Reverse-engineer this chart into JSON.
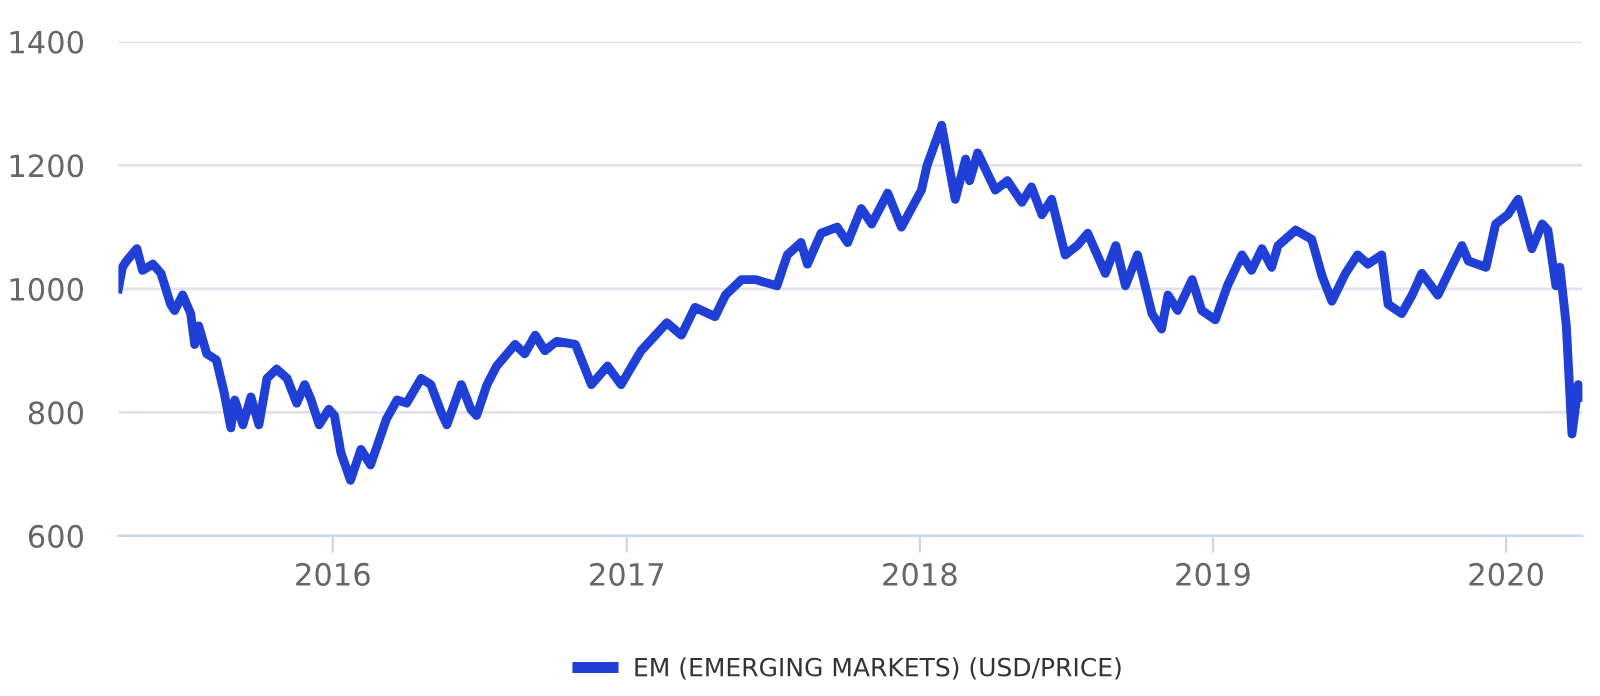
{
  "chart_data": {
    "type": "line",
    "x": [
      "2015-04-09",
      "2015-04-14",
      "2015-04-19",
      "2015-05-02",
      "2015-05-09",
      "2015-05-22",
      "2015-06-01",
      "2015-06-13",
      "2015-06-18",
      "2015-06-28",
      "2015-07-08",
      "2015-07-13",
      "2015-07-18",
      "2015-07-28",
      "2015-08-09",
      "2015-08-19",
      "2015-08-27",
      "2015-09-01",
      "2015-09-11",
      "2015-09-21",
      "2015-10-01",
      "2015-10-11",
      "2015-10-23",
      "2015-11-05",
      "2015-11-17",
      "2015-11-27",
      "2015-12-05",
      "2015-12-15",
      "2015-12-27",
      "2016-01-03",
      "2016-01-11",
      "2016-01-23",
      "2016-02-05",
      "2016-02-17",
      "2016-02-25",
      "2016-03-08",
      "2016-03-21",
      "2016-04-02",
      "2016-04-20",
      "2016-05-02",
      "2016-05-15",
      "2016-05-22",
      "2016-06-09",
      "2016-06-21",
      "2016-06-28",
      "2016-07-11",
      "2016-07-23",
      "2016-08-15",
      "2016-08-27",
      "2016-09-09",
      "2016-09-21",
      "2016-10-06",
      "2016-10-29",
      "2016-11-18",
      "2016-12-08",
      "2016-12-25",
      "2017-01-19",
      "2017-02-20",
      "2017-03-10",
      "2017-03-27",
      "2017-04-21",
      "2017-05-04",
      "2017-05-24",
      "2017-06-10",
      "2017-07-07",
      "2017-07-20",
      "2017-08-06",
      "2017-08-14",
      "2017-08-31",
      "2017-09-20",
      "2017-10-03",
      "2017-10-20",
      "2017-11-02",
      "2017-11-22",
      "2017-12-09",
      "2018-01-03",
      "2018-01-10",
      "2018-01-28",
      "2018-02-14",
      "2018-02-27",
      "2018-03-04",
      "2018-03-14",
      "2018-04-05",
      "2018-04-20",
      "2018-05-08",
      "2018-05-20",
      "2018-06-02",
      "2018-06-14",
      "2018-07-01",
      "2018-07-16",
      "2018-07-29",
      "2018-08-20",
      "2018-09-02",
      "2018-09-14",
      "2018-09-29",
      "2018-10-17",
      "2018-10-29",
      "2018-11-06",
      "2018-11-18",
      "2018-12-06",
      "2018-12-18",
      "2019-01-04",
      "2019-01-19",
      "2019-02-06",
      "2019-02-18",
      "2019-03-03",
      "2019-03-15",
      "2019-03-23",
      "2019-04-14",
      "2019-05-04",
      "2019-05-17",
      "2019-05-29",
      "2019-06-15",
      "2019-06-30",
      "2019-07-13",
      "2019-07-30",
      "2019-08-07",
      "2019-08-24",
      "2019-09-06",
      "2019-09-18",
      "2019-10-08",
      "2019-10-21",
      "2019-11-07",
      "2019-11-15",
      "2019-12-07",
      "2019-12-19",
      "2020-01-03",
      "2020-01-16",
      "2020-02-02",
      "2020-02-15",
      "2020-02-22",
      "2020-03-03",
      "2020-03-08",
      "2020-03-16",
      "2020-03-23",
      "2020-03-31",
      "2020-04-05"
    ],
    "series": [
      {
        "name": "EM (EMERGING MARKETS) (USD/PRICE)",
        "color": "#1f3fd6",
        "values": [
          1000,
          1035,
          1045,
          1065,
          1030,
          1040,
          1025,
          975,
          965,
          990,
          960,
          910,
          940,
          895,
          885,
          830,
          775,
          820,
          780,
          825,
          780,
          855,
          870,
          855,
          815,
          845,
          820,
          780,
          805,
          795,
          735,
          690,
          740,
          715,
          745,
          790,
          820,
          815,
          855,
          845,
          800,
          780,
          845,
          805,
          795,
          845,
          875,
          910,
          895,
          925,
          900,
          915,
          910,
          845,
          875,
          845,
          900,
          945,
          925,
          970,
          955,
          990,
          1015,
          1015,
          1005,
          1055,
          1075,
          1040,
          1090,
          1100,
          1075,
          1130,
          1105,
          1155,
          1100,
          1160,
          1200,
          1265,
          1145,
          1210,
          1175,
          1220,
          1160,
          1175,
          1140,
          1165,
          1120,
          1145,
          1055,
          1070,
          1090,
          1025,
          1070,
          1005,
          1055,
          960,
          935,
          990,
          965,
          1015,
          965,
          950,
          1005,
          1055,
          1030,
          1065,
          1035,
          1070,
          1095,
          1080,
          1020,
          980,
          1025,
          1055,
          1040,
          1055,
          975,
          960,
          990,
          1025,
          990,
          1025,
          1070,
          1045,
          1035,
          1105,
          1120,
          1145,
          1065,
          1105,
          1095,
          1005,
          1035,
          940,
          765,
          845,
          825
        ]
      }
    ],
    "xlim": [
      "2015-04-09",
      "2020-04-05"
    ],
    "xticks": [
      {
        "value": "2016-01-01",
        "label": "2016"
      },
      {
        "value": "2017-01-01",
        "label": "2017"
      },
      {
        "value": "2018-01-01",
        "label": "2018"
      },
      {
        "value": "2019-01-01",
        "label": "2019"
      },
      {
        "value": "2020-01-01",
        "label": "2020"
      }
    ],
    "ylim": [
      600,
      1400
    ],
    "yticks": [
      600,
      800,
      1000,
      1200,
      1400
    ],
    "grid": "y",
    "legend": "bottom",
    "marker": "none",
    "line_style": "solid"
  }
}
